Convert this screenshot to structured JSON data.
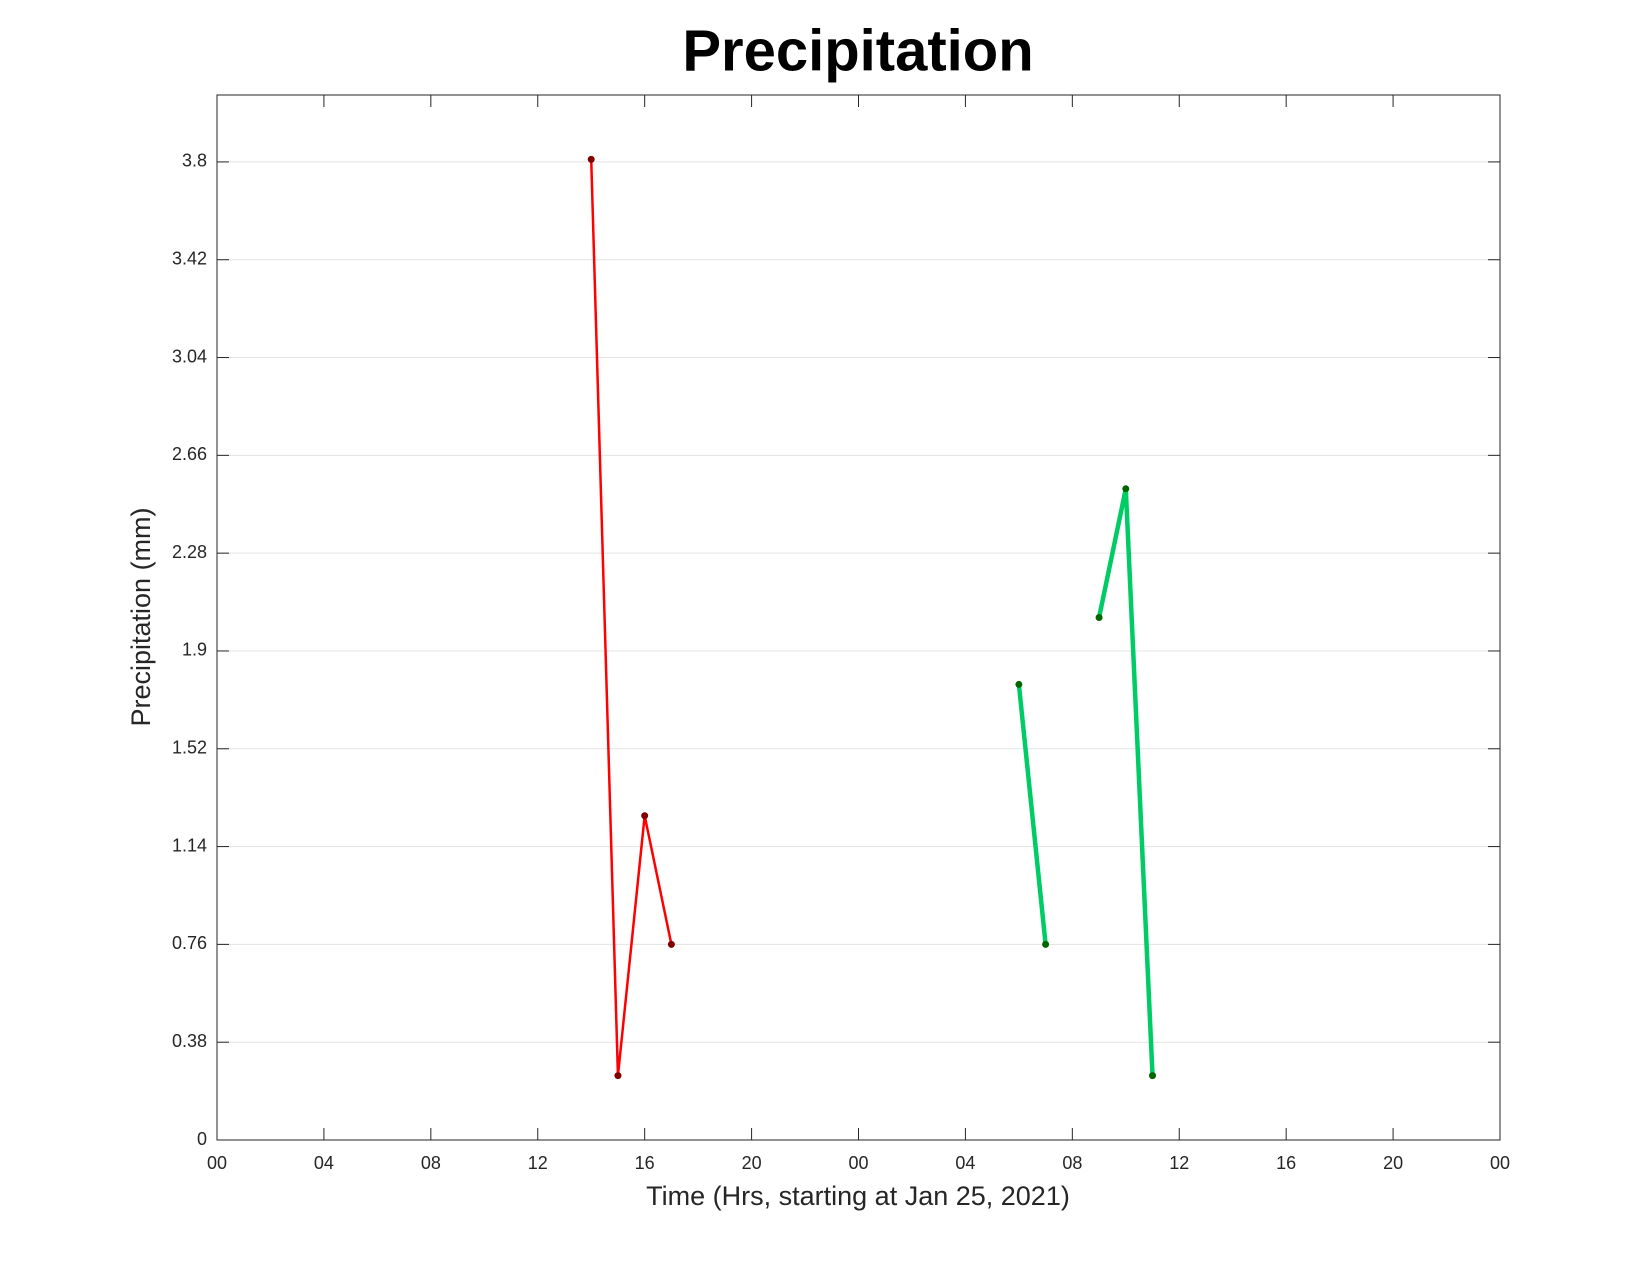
{
  "chart_data": {
    "type": "line",
    "title": "Precipitation",
    "x_label": "Time (Hrs, starting at Jan 25, 2021)",
    "y_label": "Precipitation (mm)",
    "series": [
      {
        "color": "#ff0000",
        "marker_color": "#800000",
        "line_width": 2.5,
        "x": [
          14,
          15,
          16,
          17
        ],
        "values": [
          3.81,
          0.25,
          1.26,
          0.76
        ]
      },
      {
        "color": "#00cc66",
        "marker_color": "#006600",
        "line_width": 4.5,
        "x": [
          30,
          31,
          32,
          33,
          34,
          35
        ],
        "values": [
          1.77,
          0.76,
          null,
          2.03,
          2.53,
          0.25
        ]
      }
    ],
    "xlim": [
      0,
      48
    ],
    "xticks": [
      {
        "value": 0,
        "label": "00"
      },
      {
        "value": 4,
        "label": "04"
      },
      {
        "value": 8,
        "label": "08"
      },
      {
        "value": 12,
        "label": "12"
      },
      {
        "value": 16,
        "label": "16"
      },
      {
        "value": 20,
        "label": "20"
      },
      {
        "value": 24,
        "label": "00"
      },
      {
        "value": 28,
        "label": "04"
      },
      {
        "value": 32,
        "label": "08"
      },
      {
        "value": 36,
        "label": "12"
      },
      {
        "value": 40,
        "label": "16"
      },
      {
        "value": 44,
        "label": "20"
      },
      {
        "value": 48,
        "label": "00"
      }
    ],
    "ylim": [
      0,
      4.06
    ],
    "yticks": [
      0,
      0.38,
      0.76,
      1.14,
      1.52,
      1.9,
      2.28,
      2.66,
      3.04,
      3.42,
      3.8
    ],
    "grid": true
  }
}
